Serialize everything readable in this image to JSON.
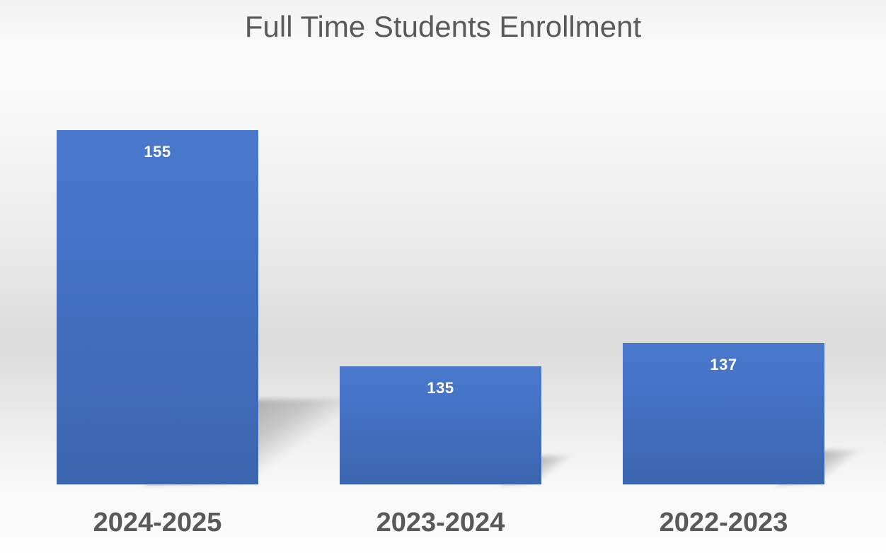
{
  "chart_data": {
    "type": "bar",
    "title": "Full Time Students Enrollment",
    "categories": [
      "2024-2025",
      "2023-2024",
      "2022-2023"
    ],
    "values": [
      155,
      135,
      137
    ],
    "series": [
      {
        "name": "Full Time Students Enrollment",
        "values": [
          155,
          135,
          137
        ]
      }
    ],
    "data_labels": [
      "155",
      "135",
      "137"
    ],
    "xlabel": "",
    "ylabel": "",
    "legend": "none",
    "gridlines": false,
    "value_axis": {
      "visible": false,
      "implied_min": 125,
      "implied_max": 155
    },
    "category_axis": {
      "visible": true,
      "position": "bottom",
      "tick_marks": false
    },
    "bar_color": "#4472C4",
    "bar_gradient_top": "#4A79CB",
    "bar_gradient_mid": "#4472C4",
    "bar_gradient_bottom": "#3C65AF",
    "data_label_color": "#FFFFFF",
    "text_color": "#595959",
    "background_style": "gray-studio-gradient",
    "bar_effect": "perspective-shadow-lower-right"
  }
}
